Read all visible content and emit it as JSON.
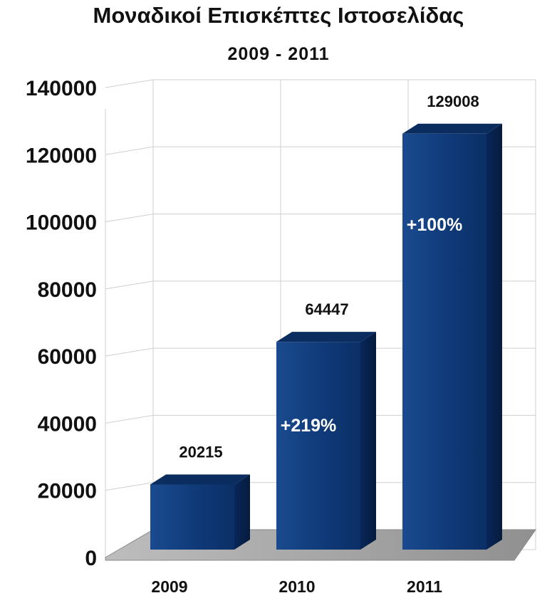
{
  "chart_data": {
    "type": "bar",
    "title": "Μοναδικοί Επισκέπτες Ιστοσελίδας",
    "subtitle": "2009 - 2011",
    "categories": [
      "2009",
      "2010",
      "2011"
    ],
    "values": [
      20215,
      64447,
      129008
    ],
    "value_labels": [
      "20215",
      "64447",
      "129008"
    ],
    "growth_labels": [
      "",
      "+219%",
      "+100%"
    ],
    "y_ticks": [
      "0",
      "20000",
      "40000",
      "60000",
      "80000",
      "100000",
      "120000",
      "140000"
    ],
    "ylim": [
      0,
      140000
    ],
    "xlabel": "",
    "ylabel": "",
    "grid": true,
    "style": "3d",
    "colors": {
      "bar_front": "#0f3a78",
      "bar_top": "#0a2c5e",
      "bar_side": "#061c3d",
      "floor": "#a8a8a8",
      "grid": "#cfcfcf"
    }
  }
}
